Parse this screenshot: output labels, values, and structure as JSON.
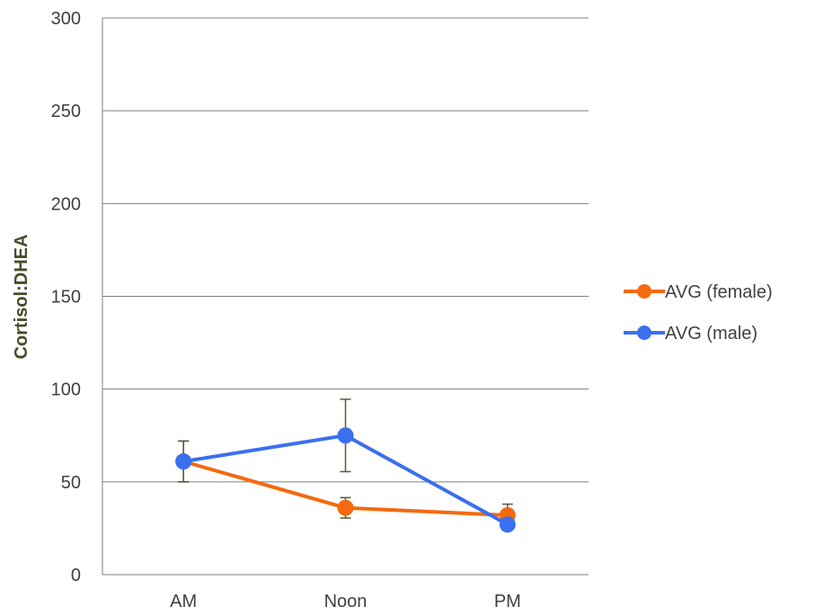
{
  "chart_data": {
    "type": "line",
    "title": "",
    "xlabel": "",
    "ylabel": "Cortisol:DHEA",
    "categories": [
      "AM",
      "Noon",
      "PM"
    ],
    "ylim": [
      0,
      300
    ],
    "yticks": [
      0,
      50,
      100,
      150,
      200,
      250,
      300
    ],
    "grid": true,
    "legend_position": "right",
    "series": [
      {
        "name": "AVG (female)",
        "color": "#f36a10",
        "values": [
          61,
          36,
          32
        ],
        "error": [
          11,
          5.5,
          6
        ]
      },
      {
        "name": "AVG (male)",
        "color": "#3a6ff0",
        "values": [
          61,
          75,
          27
        ],
        "error": [
          11,
          19.5,
          3
        ]
      }
    ],
    "gridline_color": "#7f7f7f",
    "errorbar_color": "#5a5a3a"
  }
}
